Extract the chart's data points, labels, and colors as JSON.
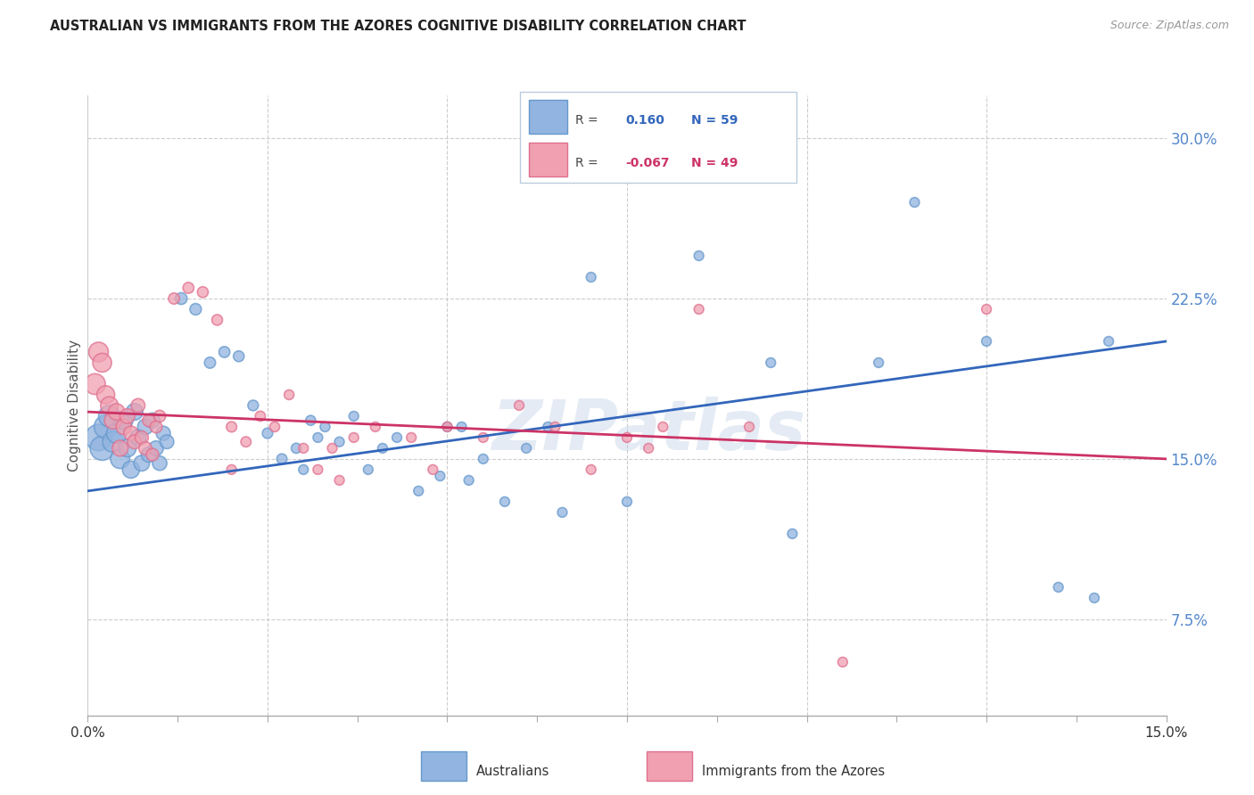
{
  "title": "AUSTRALIAN VS IMMIGRANTS FROM THE AZORES COGNITIVE DISABILITY CORRELATION CHART",
  "source": "Source: ZipAtlas.com",
  "ylabel": "Cognitive Disability",
  "right_yticks": [
    7.5,
    15.0,
    22.5,
    30.0
  ],
  "right_ytick_labels": [
    "7.5%",
    "15.0%",
    "22.5%",
    "30.0%"
  ],
  "xlim": [
    0.0,
    15.0
  ],
  "ylim": [
    3.0,
    32.0
  ],
  "blue_R": 0.16,
  "blue_N": 59,
  "pink_R": -0.067,
  "pink_N": 49,
  "blue_color": "#92b4e0",
  "blue_edge": "#6699cc",
  "pink_color": "#f0a0b0",
  "pink_edge": "#e07090",
  "line_blue": "#3366bb",
  "line_pink": "#cc3366",
  "watermark": "ZIPatlas",
  "legend_label_blue": "Australians",
  "legend_label_pink": "Immigrants from the Azores",
  "blue_line_y0": 13.5,
  "blue_line_y1": 20.5,
  "pink_line_y0": 17.2,
  "pink_line_y1": 15.0,
  "australians_x": [
    0.15,
    0.2,
    0.25,
    0.3,
    0.35,
    0.4,
    0.45,
    0.5,
    0.55,
    0.6,
    0.65,
    0.7,
    0.75,
    0.8,
    0.85,
    0.9,
    0.95,
    1.0,
    1.05,
    1.1,
    1.3,
    1.5,
    1.7,
    1.9,
    2.1,
    2.3,
    2.5,
    2.7,
    2.9,
    3.1,
    3.3,
    3.5,
    3.7,
    3.9,
    4.1,
    4.3,
    4.6,
    4.9,
    5.2,
    5.5,
    5.8,
    6.1,
    6.4,
    7.0,
    8.5,
    9.5,
    11.0,
    11.5,
    12.5,
    13.5,
    14.0,
    14.2,
    3.0,
    3.2,
    5.0,
    5.3,
    6.6,
    7.5,
    9.8
  ],
  "australians_y": [
    16.0,
    15.5,
    16.5,
    17.0,
    15.8,
    16.2,
    15.0,
    16.8,
    15.5,
    14.5,
    17.2,
    16.0,
    14.8,
    16.5,
    15.2,
    16.8,
    15.5,
    14.8,
    16.2,
    15.8,
    22.5,
    22.0,
    19.5,
    20.0,
    19.8,
    17.5,
    16.2,
    15.0,
    15.5,
    16.8,
    16.5,
    15.8,
    17.0,
    14.5,
    15.5,
    16.0,
    13.5,
    14.2,
    16.5,
    15.0,
    13.0,
    15.5,
    16.5,
    23.5,
    24.5,
    19.5,
    19.5,
    27.0,
    20.5,
    9.0,
    8.5,
    20.5,
    14.5,
    16.0,
    16.5,
    14.0,
    12.5,
    13.0,
    11.5
  ],
  "australians_size": [
    450,
    380,
    350,
    300,
    280,
    260,
    240,
    220,
    200,
    190,
    180,
    170,
    160,
    155,
    150,
    145,
    140,
    135,
    130,
    125,
    90,
    85,
    80,
    78,
    75,
    72,
    70,
    68,
    66,
    64,
    62,
    60,
    60,
    60,
    60,
    60,
    60,
    60,
    60,
    60,
    60,
    60,
    60,
    60,
    60,
    60,
    60,
    60,
    60,
    60,
    60,
    60,
    60,
    60,
    60,
    60,
    60,
    60,
    60
  ],
  "azores_x": [
    0.1,
    0.15,
    0.2,
    0.25,
    0.3,
    0.35,
    0.4,
    0.45,
    0.5,
    0.55,
    0.6,
    0.65,
    0.7,
    0.75,
    0.8,
    0.85,
    0.9,
    0.95,
    1.0,
    1.2,
    1.4,
    1.6,
    1.8,
    2.0,
    2.2,
    2.4,
    2.6,
    2.8,
    3.0,
    3.2,
    3.4,
    3.7,
    4.0,
    4.5,
    4.8,
    5.5,
    6.5,
    7.0,
    7.5,
    8.5,
    9.2,
    10.5,
    12.5,
    2.0,
    3.5,
    5.0,
    6.0,
    7.8,
    8.0
  ],
  "azores_y": [
    18.5,
    20.0,
    19.5,
    18.0,
    17.5,
    16.8,
    17.2,
    15.5,
    16.5,
    17.0,
    16.2,
    15.8,
    17.5,
    16.0,
    15.5,
    16.8,
    15.2,
    16.5,
    17.0,
    22.5,
    23.0,
    22.8,
    21.5,
    16.5,
    15.8,
    17.0,
    16.5,
    18.0,
    15.5,
    14.5,
    15.5,
    16.0,
    16.5,
    16.0,
    14.5,
    16.0,
    16.5,
    14.5,
    16.0,
    22.0,
    16.5,
    5.5,
    22.0,
    14.5,
    14.0,
    16.5,
    17.5,
    15.5,
    16.5
  ],
  "azores_size": [
    280,
    250,
    230,
    210,
    200,
    190,
    175,
    165,
    155,
    145,
    135,
    128,
    122,
    115,
    110,
    105,
    100,
    95,
    90,
    80,
    78,
    76,
    74,
    70,
    68,
    66,
    64,
    62,
    60,
    60,
    60,
    60,
    60,
    60,
    60,
    60,
    60,
    60,
    60,
    60,
    60,
    60,
    60,
    60,
    60,
    60,
    60,
    60,
    60
  ]
}
